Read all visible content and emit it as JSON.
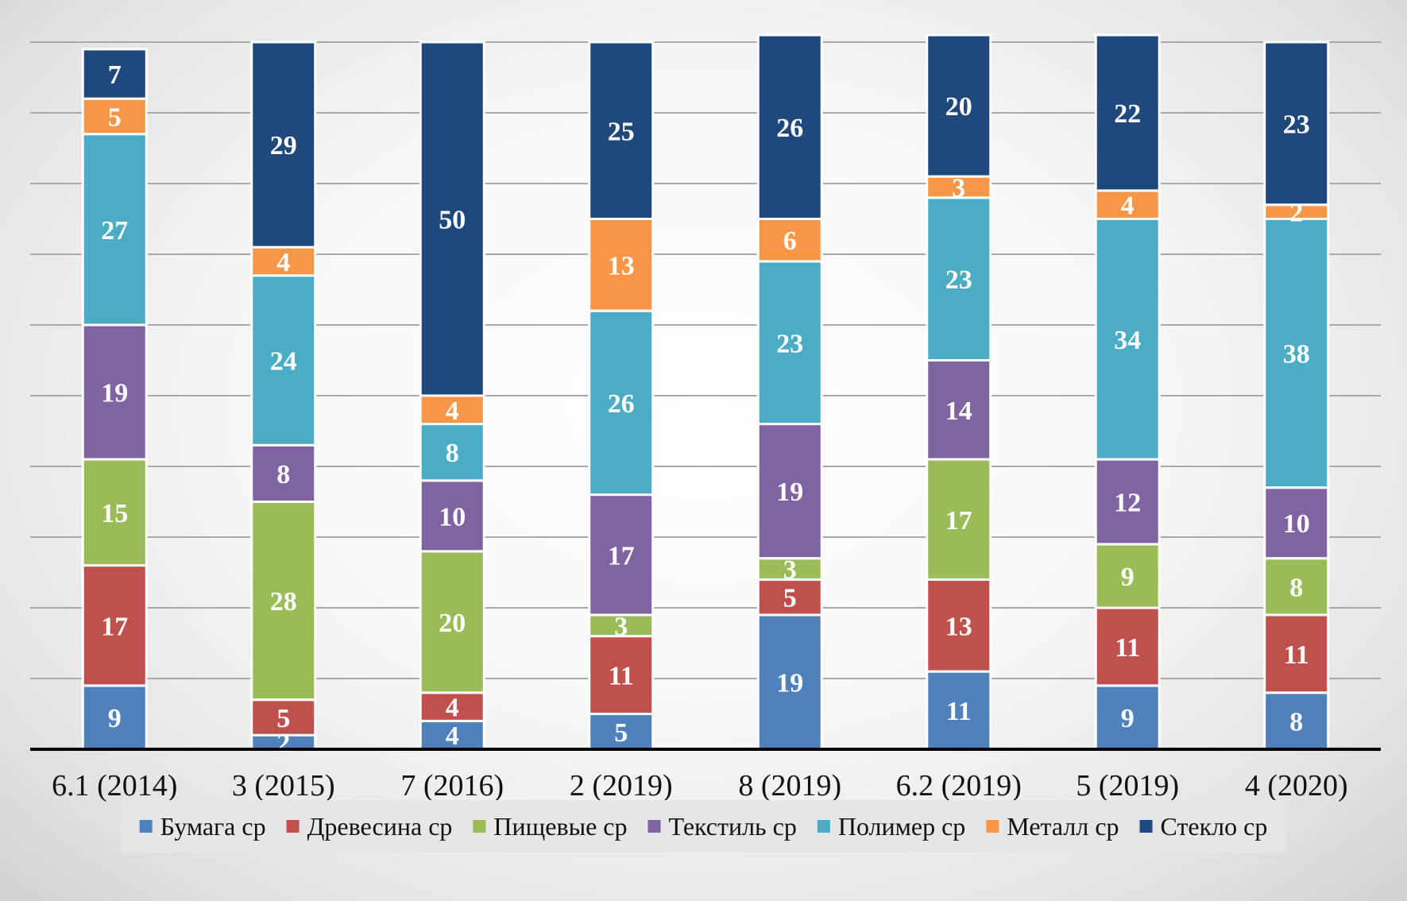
{
  "chart_data": {
    "type": "bar",
    "stacked": true,
    "categories": [
      "6.1 (2014)",
      "3 (2015)",
      "7 (2016)",
      "2 (2019)",
      "8 (2019)",
      "6.2 (2019)",
      "5 (2019)",
      "4 (2020)"
    ],
    "series": [
      {
        "name": "Бумага ср",
        "color": "#4f81bd",
        "values": [
          9,
          2,
          4,
          5,
          19,
          11,
          9,
          8
        ]
      },
      {
        "name": "Древесина ср",
        "color": "#c0504d",
        "values": [
          17,
          5,
          4,
          11,
          5,
          13,
          11,
          11
        ]
      },
      {
        "name": "Пищевые ср",
        "color": "#9bbb59",
        "values": [
          15,
          28,
          20,
          3,
          3,
          17,
          9,
          8
        ]
      },
      {
        "name": "Текстиль ср",
        "color": "#8064a2",
        "values": [
          19,
          8,
          10,
          17,
          19,
          14,
          12,
          10
        ]
      },
      {
        "name": "Полимер ср",
        "color": "#4bacc6",
        "values": [
          27,
          24,
          8,
          26,
          23,
          23,
          34,
          38
        ]
      },
      {
        "name": "Металл ср",
        "color": "#f79646",
        "values": [
          5,
          4,
          4,
          13,
          6,
          3,
          4,
          2
        ]
      },
      {
        "name": "Стекло ср",
        "color": "#1f497d",
        "values": [
          7,
          29,
          50,
          25,
          26,
          20,
          22,
          23
        ]
      }
    ],
    "ylim": [
      0,
      100
    ],
    "grid": true,
    "legend_position": "bottom",
    "data_labels": true
  }
}
